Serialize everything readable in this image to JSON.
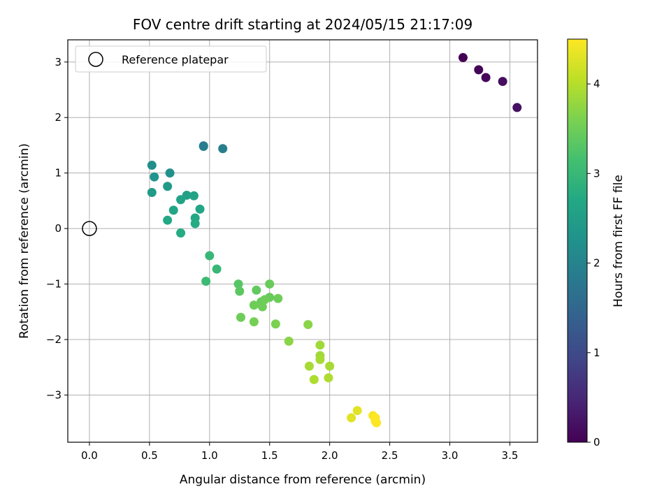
{
  "chart_data": {
    "type": "scatter",
    "title": "FOV centre drift starting at 2024/05/15 21:17:09",
    "xlabel": "Angular distance from reference (arcmin)",
    "ylabel": "Rotation from reference (arcmin)",
    "xlim": [
      -0.18,
      3.73
    ],
    "ylim": [
      -3.85,
      3.4
    ],
    "xticks": [
      0.0,
      0.5,
      1.0,
      1.5,
      2.0,
      2.5,
      3.0,
      3.5
    ],
    "xtick_labels": [
      "0.0",
      "0.5",
      "1.0",
      "1.5",
      "2.0",
      "2.5",
      "3.0",
      "3.5"
    ],
    "yticks": [
      -3,
      -2,
      -1,
      0,
      1,
      2,
      3
    ],
    "ytick_labels": [
      "−3",
      "−2",
      "−1",
      "0",
      "1",
      "2",
      "3"
    ],
    "grid": true,
    "legend": {
      "placement": "top-left",
      "entries": [
        {
          "label": "Reference platepar",
          "marker": "open-circle"
        }
      ]
    },
    "reference_point": {
      "x": 0.0,
      "y": 0.0
    },
    "colorbar": {
      "label": "Hours from first FF file",
      "range": [
        0,
        4.5
      ],
      "ticks": [
        0,
        1,
        2,
        3,
        4
      ],
      "tick_labels": [
        "0",
        "1",
        "2",
        "3",
        "4"
      ],
      "colormap": "viridis"
    },
    "points": [
      {
        "x": 3.11,
        "y": 3.08,
        "hours": 0.0
      },
      {
        "x": 3.24,
        "y": 2.86,
        "hours": 0.05
      },
      {
        "x": 3.3,
        "y": 2.72,
        "hours": 0.1
      },
      {
        "x": 3.44,
        "y": 2.65,
        "hours": 0.15
      },
      {
        "x": 3.56,
        "y": 2.18,
        "hours": 0.2
      },
      {
        "x": 0.95,
        "y": 1.49,
        "hours": 1.85
      },
      {
        "x": 0.95,
        "y": 1.48,
        "hours": 1.9
      },
      {
        "x": 1.11,
        "y": 1.44,
        "hours": 1.9
      },
      {
        "x": 0.52,
        "y": 1.14,
        "hours": 2.2
      },
      {
        "x": 0.67,
        "y": 1.0,
        "hours": 2.25
      },
      {
        "x": 0.54,
        "y": 0.93,
        "hours": 2.3
      },
      {
        "x": 0.65,
        "y": 0.76,
        "hours": 2.4
      },
      {
        "x": 0.52,
        "y": 0.65,
        "hours": 2.45
      },
      {
        "x": 0.81,
        "y": 0.6,
        "hours": 2.55
      },
      {
        "x": 0.87,
        "y": 0.59,
        "hours": 2.6
      },
      {
        "x": 0.76,
        "y": 0.52,
        "hours": 2.6
      },
      {
        "x": 0.7,
        "y": 0.33,
        "hours": 2.65
      },
      {
        "x": 0.92,
        "y": 0.35,
        "hours": 2.65
      },
      {
        "x": 0.88,
        "y": 0.19,
        "hours": 2.7
      },
      {
        "x": 0.65,
        "y": 0.15,
        "hours": 2.7
      },
      {
        "x": 0.88,
        "y": 0.09,
        "hours": 2.75
      },
      {
        "x": 0.76,
        "y": -0.08,
        "hours": 2.75
      },
      {
        "x": 1.0,
        "y": -0.49,
        "hours": 3.0
      },
      {
        "x": 1.06,
        "y": -0.73,
        "hours": 3.0
      },
      {
        "x": 0.97,
        "y": -0.95,
        "hours": 3.05
      },
      {
        "x": 1.24,
        "y": -1.0,
        "hours": 3.3
      },
      {
        "x": 1.25,
        "y": -1.13,
        "hours": 3.35
      },
      {
        "x": 1.39,
        "y": -1.11,
        "hours": 3.4
      },
      {
        "x": 1.5,
        "y": -1.0,
        "hours": 3.45
      },
      {
        "x": 1.5,
        "y": -1.24,
        "hours": 3.45
      },
      {
        "x": 1.43,
        "y": -1.32,
        "hours": 3.45
      },
      {
        "x": 1.46,
        "y": -1.28,
        "hours": 3.5
      },
      {
        "x": 1.57,
        "y": -1.26,
        "hours": 3.5
      },
      {
        "x": 1.37,
        "y": -1.38,
        "hours": 3.5
      },
      {
        "x": 1.44,
        "y": -1.41,
        "hours": 3.5
      },
      {
        "x": 1.26,
        "y": -1.6,
        "hours": 3.5
      },
      {
        "x": 1.37,
        "y": -1.68,
        "hours": 3.55
      },
      {
        "x": 1.55,
        "y": -1.72,
        "hours": 3.6
      },
      {
        "x": 1.82,
        "y": -1.73,
        "hours": 3.7
      },
      {
        "x": 1.66,
        "y": -2.03,
        "hours": 3.7
      },
      {
        "x": 1.92,
        "y": -2.1,
        "hours": 3.85
      },
      {
        "x": 1.92,
        "y": -2.29,
        "hours": 3.85
      },
      {
        "x": 1.92,
        "y": -2.36,
        "hours": 3.9
      },
      {
        "x": 1.83,
        "y": -2.48,
        "hours": 3.9
      },
      {
        "x": 2.0,
        "y": -2.48,
        "hours": 3.9
      },
      {
        "x": 1.87,
        "y": -2.72,
        "hours": 3.95
      },
      {
        "x": 1.99,
        "y": -2.69,
        "hours": 3.95
      },
      {
        "x": 2.18,
        "y": -3.41,
        "hours": 4.3
      },
      {
        "x": 2.23,
        "y": -3.28,
        "hours": 4.3
      },
      {
        "x": 2.36,
        "y": -3.37,
        "hours": 4.45
      },
      {
        "x": 2.38,
        "y": -3.41,
        "hours": 4.5
      },
      {
        "x": 2.38,
        "y": -3.47,
        "hours": 4.5
      },
      {
        "x": 2.39,
        "y": -3.5,
        "hours": 4.5
      }
    ]
  }
}
